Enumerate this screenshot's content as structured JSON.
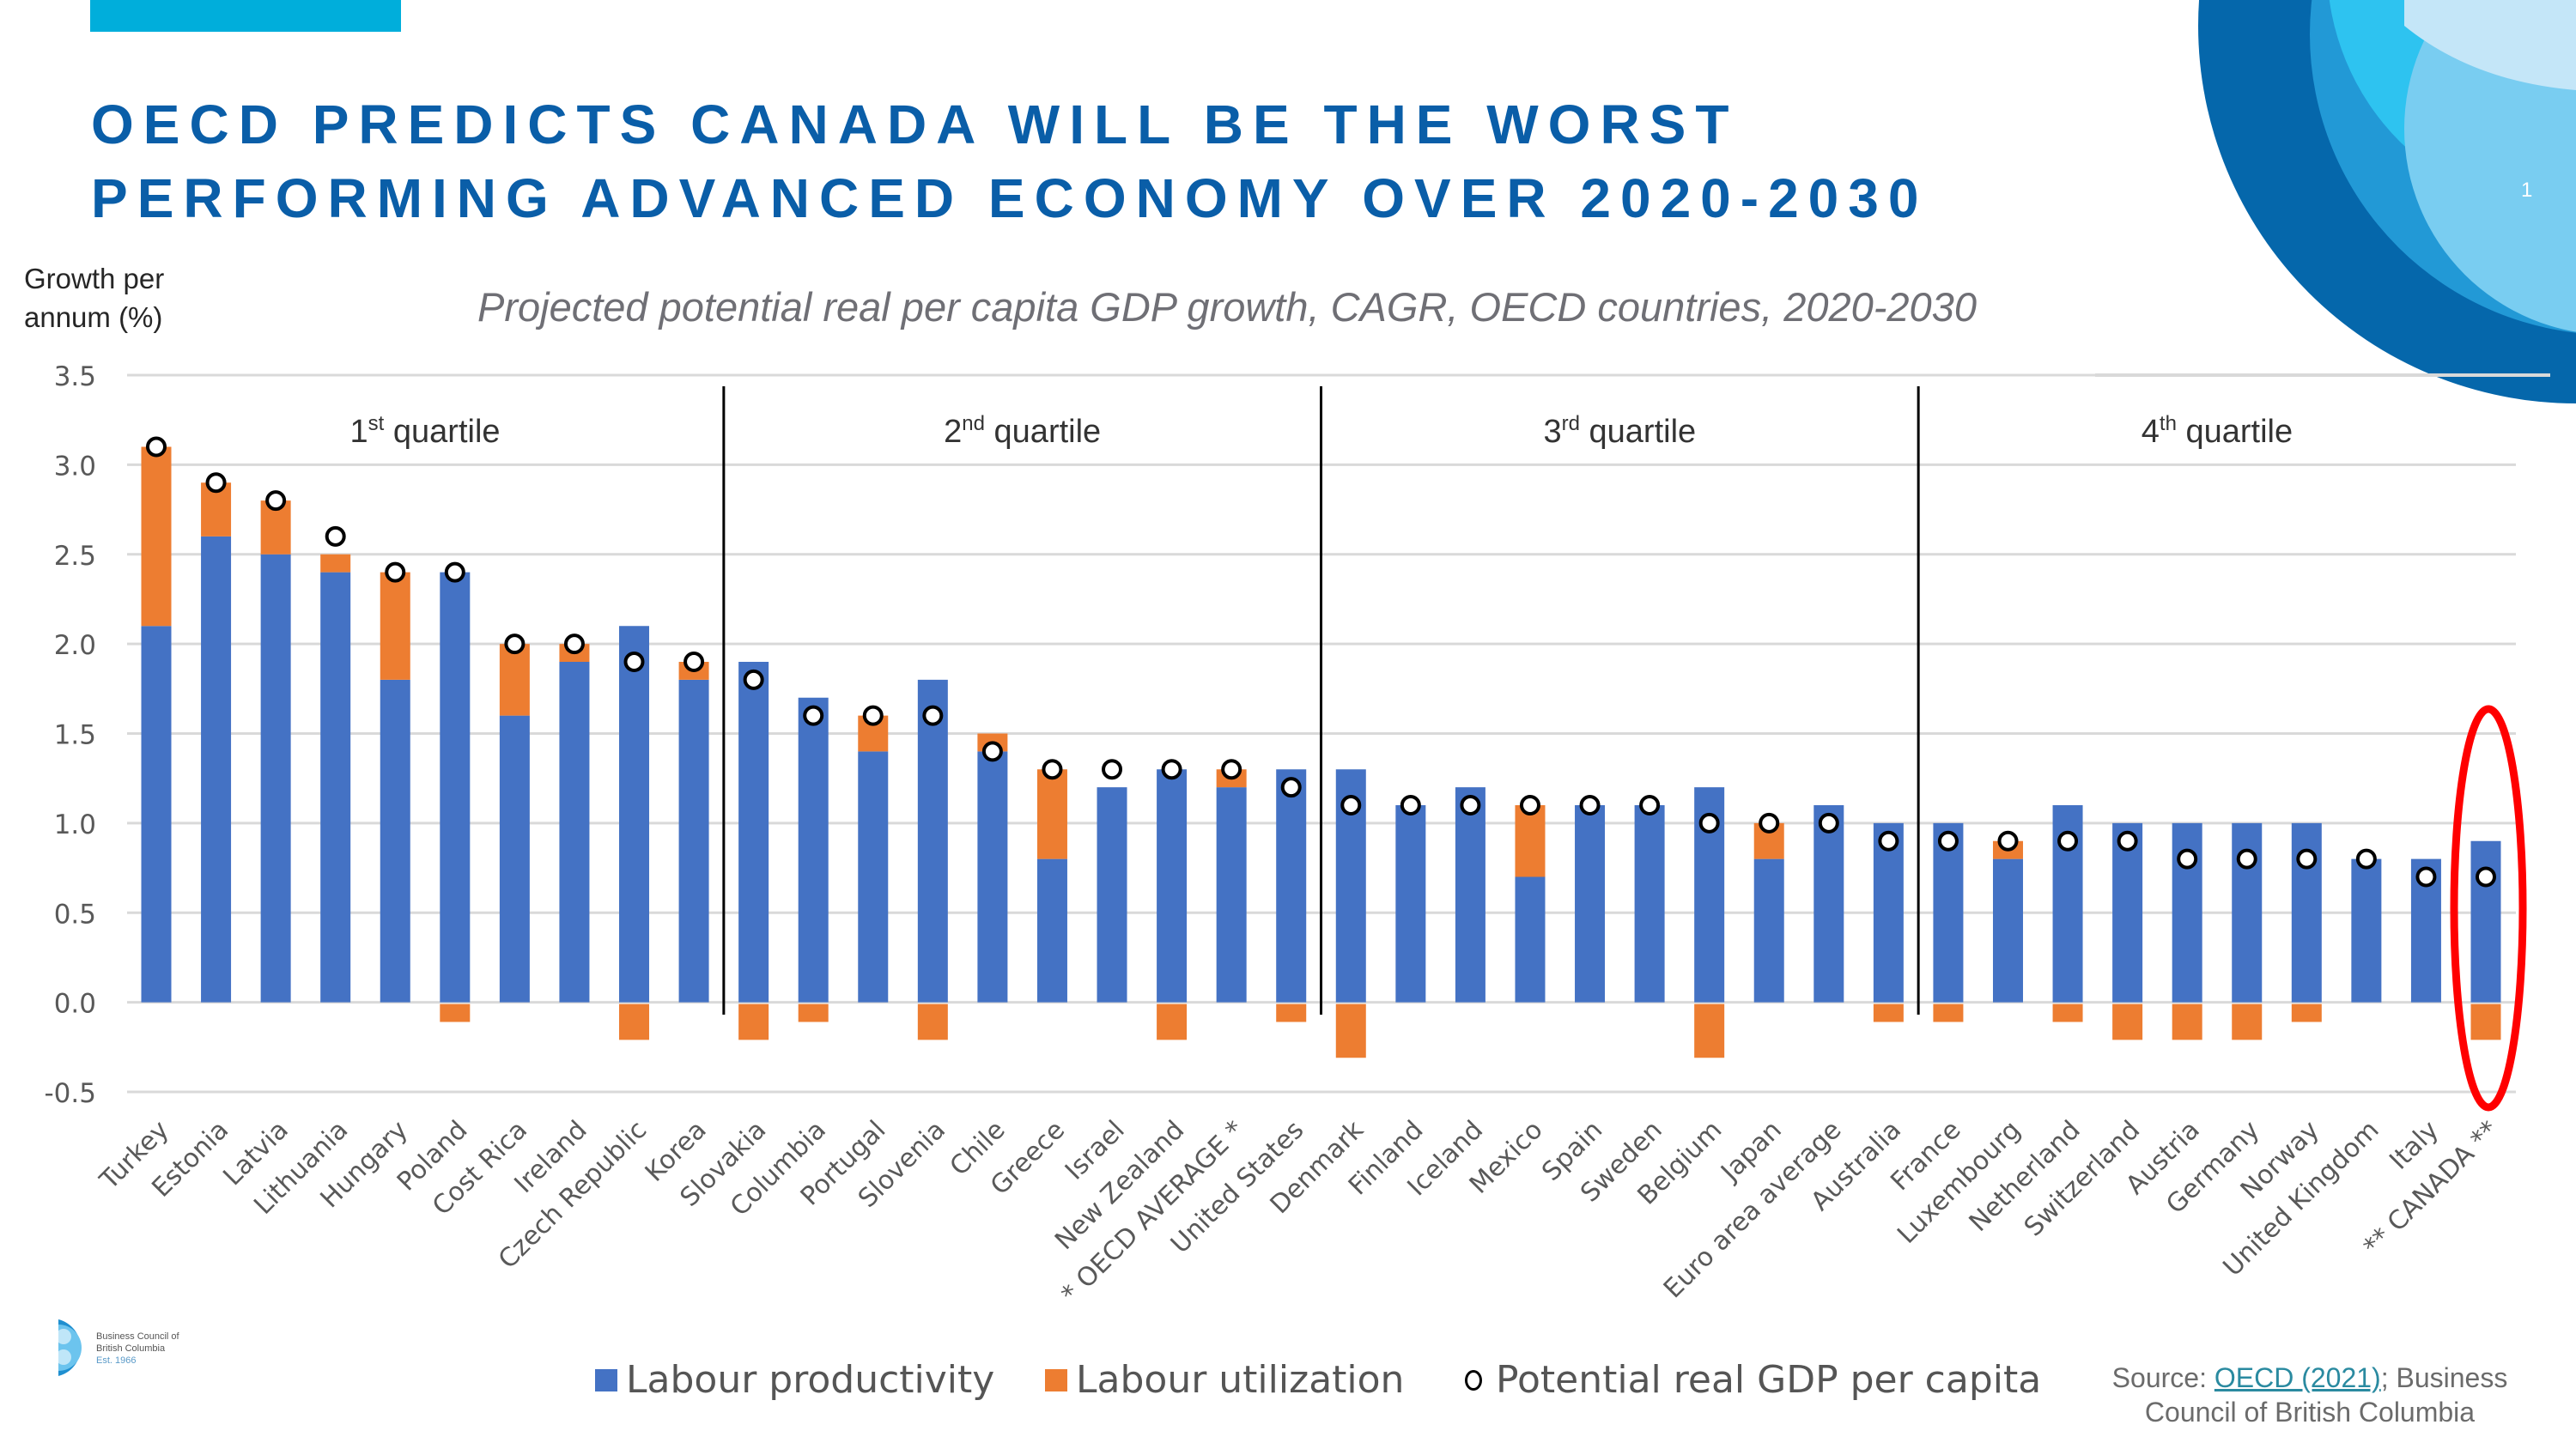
{
  "slide": {
    "title_line1": "OECD PREDICTS CANADA WILL BE THE WORST",
    "title_line2": "PERFORMING ADVANCED ECONOMY OVER 2020-2030",
    "slide_number": "1",
    "accent_color": "#0a5ea8",
    "top_bar_color": "#00aedb"
  },
  "logo": {
    "line1": "Business Council of",
    "line2": "British Columbia",
    "line3": "Est. 1966"
  },
  "source": {
    "prefix": "Source: ",
    "link_text": "OECD (2021)",
    "suffix": "; Business Council of British Columbia"
  },
  "chart_data": {
    "type": "bar",
    "stacked": true,
    "title": "Projected potential real per capita GDP growth, CAGR, OECD countries, 2020-2030",
    "ylabel_line1": "Growth per",
    "ylabel_line2": "annum (%)",
    "xlabel": "",
    "ylim": [
      -0.5,
      3.5
    ],
    "yticks": [
      -0.5,
      0.0,
      0.5,
      1.0,
      1.5,
      2.0,
      2.5,
      3.0,
      3.5
    ],
    "ytick_labels": [
      "-0.5",
      "0.0",
      "0.5",
      "1.0",
      "1.5",
      "2.0",
      "2.5",
      "3.0",
      "3.5"
    ],
    "grid": true,
    "legend_position": "bottom",
    "categories": [
      "Turkey",
      "Estonia",
      "Latvia",
      "Lithuania",
      "Hungary",
      "Poland",
      "Cost Rica",
      "Ireland",
      "Czech Republic",
      "Korea",
      "Slovakia",
      "Columbia",
      "Portugal",
      "Slovenia",
      "Chile",
      "Greece",
      "Israel",
      "New Zealand",
      "* OECD AVERAGE *",
      "United States",
      "Denmark",
      "Finland",
      "Iceland",
      "Mexico",
      "Spain",
      "Sweden",
      "Belgium",
      "Japan",
      "Euro area average",
      "Australia",
      "France",
      "Luxembourg",
      "Netherland",
      "Switzerland",
      "Austria",
      "Germany",
      "Norway",
      "United Kingdom",
      "Italy",
      "** CANADA **"
    ],
    "series": [
      {
        "name": "Labour productivity",
        "kind": "bar",
        "color": "#4472c4",
        "values": [
          2.1,
          2.6,
          2.5,
          2.4,
          1.8,
          2.4,
          1.6,
          1.9,
          2.1,
          1.8,
          1.9,
          1.7,
          1.4,
          1.8,
          1.4,
          0.8,
          1.2,
          1.3,
          1.2,
          1.3,
          1.3,
          1.1,
          1.2,
          0.7,
          1.1,
          1.1,
          1.2,
          0.8,
          1.1,
          1.0,
          1.0,
          0.8,
          1.1,
          1.0,
          1.0,
          1.0,
          1.0,
          0.8,
          0.8,
          0.9
        ]
      },
      {
        "name": "Labour utilization",
        "kind": "bar",
        "color": "#ed7d31",
        "values": [
          1.0,
          0.3,
          0.3,
          0.1,
          0.6,
          -0.1,
          0.4,
          0.1,
          -0.2,
          0.1,
          -0.2,
          -0.1,
          0.2,
          -0.2,
          0.1,
          0.5,
          0.0,
          -0.2,
          0.1,
          -0.1,
          -0.3,
          0.0,
          0.0,
          0.4,
          0.0,
          0.0,
          -0.3,
          0.2,
          0.0,
          -0.1,
          -0.1,
          0.1,
          -0.1,
          -0.2,
          -0.2,
          -0.2,
          -0.1,
          0.0,
          0.0,
          -0.2
        ]
      },
      {
        "name": "Potential real GDP per capita",
        "kind": "marker",
        "color": "#000000",
        "values": [
          3.1,
          2.9,
          2.8,
          2.6,
          2.4,
          2.4,
          2.0,
          2.0,
          1.9,
          1.9,
          1.8,
          1.6,
          1.6,
          1.6,
          1.4,
          1.3,
          1.3,
          1.3,
          1.3,
          1.2,
          1.1,
          1.1,
          1.1,
          1.1,
          1.1,
          1.1,
          1.0,
          1.0,
          1.0,
          0.9,
          0.9,
          0.9,
          0.9,
          0.9,
          0.8,
          0.8,
          0.8,
          0.8,
          0.7,
          0.7
        ]
      }
    ],
    "quartiles": [
      {
        "label_num": "1",
        "label_sup": "st",
        "label_text": " quartile",
        "first_index": 0,
        "last_index": 9
      },
      {
        "label_num": "2",
        "label_sup": "nd",
        "label_text": " quartile",
        "first_index": 10,
        "last_index": 19
      },
      {
        "label_num": "3",
        "label_sup": "rd",
        "label_text": " quartile",
        "first_index": 20,
        "last_index": 29
      },
      {
        "label_num": "4",
        "label_sup": "th",
        "label_text": " quartile",
        "first_index": 30,
        "last_index": 39
      }
    ],
    "highlight": {
      "category": "** CANADA **",
      "color": "#ff0000"
    },
    "annotation_count": 4
  }
}
